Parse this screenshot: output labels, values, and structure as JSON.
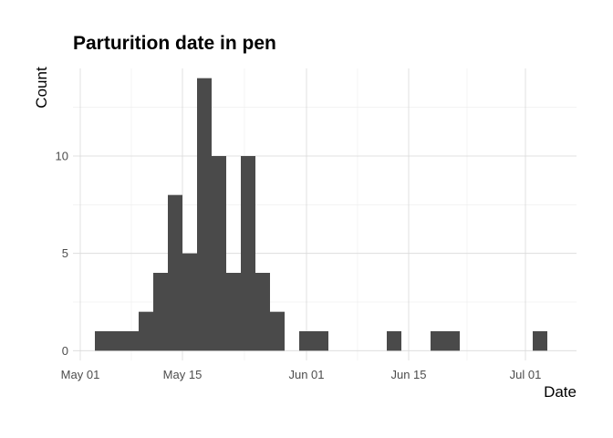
{
  "chart_data": {
    "type": "bar",
    "title": "Parturition date in pen",
    "xlabel": "Date",
    "ylabel": "Count",
    "x_ticks": [
      "May 01",
      "May 15",
      "Jun 01",
      "Jun 15",
      "Jul 01"
    ],
    "y_ticks": [
      0,
      5,
      10
    ],
    "ylim": [
      -0.5,
      14.5
    ],
    "xlim": [
      "2022-04-30",
      "2022-07-08"
    ],
    "bin_width_days": 2,
    "bins": [
      {
        "start": "2022-05-03",
        "end": "2022-05-05",
        "count": 1
      },
      {
        "start": "2022-05-05",
        "end": "2022-05-07",
        "count": 1
      },
      {
        "start": "2022-05-07",
        "end": "2022-05-09",
        "count": 1
      },
      {
        "start": "2022-05-09",
        "end": "2022-05-11",
        "count": 2
      },
      {
        "start": "2022-05-11",
        "end": "2022-05-13",
        "count": 4
      },
      {
        "start": "2022-05-13",
        "end": "2022-05-15",
        "count": 8
      },
      {
        "start": "2022-05-15",
        "end": "2022-05-17",
        "count": 5
      },
      {
        "start": "2022-05-17",
        "end": "2022-05-19",
        "count": 14
      },
      {
        "start": "2022-05-19",
        "end": "2022-05-21",
        "count": 10
      },
      {
        "start": "2022-05-21",
        "end": "2022-05-23",
        "count": 4
      },
      {
        "start": "2022-05-23",
        "end": "2022-05-25",
        "count": 10
      },
      {
        "start": "2022-05-25",
        "end": "2022-05-27",
        "count": 4
      },
      {
        "start": "2022-05-27",
        "end": "2022-05-29",
        "count": 2
      },
      {
        "start": "2022-05-29",
        "end": "2022-05-31",
        "count": 0
      },
      {
        "start": "2022-05-31",
        "end": "2022-06-02",
        "count": 1
      },
      {
        "start": "2022-06-02",
        "end": "2022-06-04",
        "count": 1
      },
      {
        "start": "2022-06-04",
        "end": "2022-06-06",
        "count": 0
      },
      {
        "start": "2022-06-06",
        "end": "2022-06-08",
        "count": 0
      },
      {
        "start": "2022-06-08",
        "end": "2022-06-10",
        "count": 0
      },
      {
        "start": "2022-06-10",
        "end": "2022-06-12",
        "count": 0
      },
      {
        "start": "2022-06-12",
        "end": "2022-06-14",
        "count": 1
      },
      {
        "start": "2022-06-14",
        "end": "2022-06-16",
        "count": 0
      },
      {
        "start": "2022-06-16",
        "end": "2022-06-18",
        "count": 0
      },
      {
        "start": "2022-06-18",
        "end": "2022-06-20",
        "count": 1
      },
      {
        "start": "2022-06-20",
        "end": "2022-06-22",
        "count": 1
      },
      {
        "start": "2022-06-22",
        "end": "2022-06-24",
        "count": 0
      },
      {
        "start": "2022-06-24",
        "end": "2022-06-26",
        "count": 0
      },
      {
        "start": "2022-06-26",
        "end": "2022-06-28",
        "count": 0
      },
      {
        "start": "2022-06-28",
        "end": "2022-06-30",
        "count": 0
      },
      {
        "start": "2022-06-30",
        "end": "2022-07-02",
        "count": 0
      },
      {
        "start": "2022-07-02",
        "end": "2022-07-04",
        "count": 1
      }
    ],
    "grid": true,
    "legend": "none",
    "colors": {
      "bar": "#4a4a4a",
      "grid_major": "#d9d9d9",
      "grid_minor": "#ececec",
      "tick_text": "#4d4d4d"
    }
  }
}
